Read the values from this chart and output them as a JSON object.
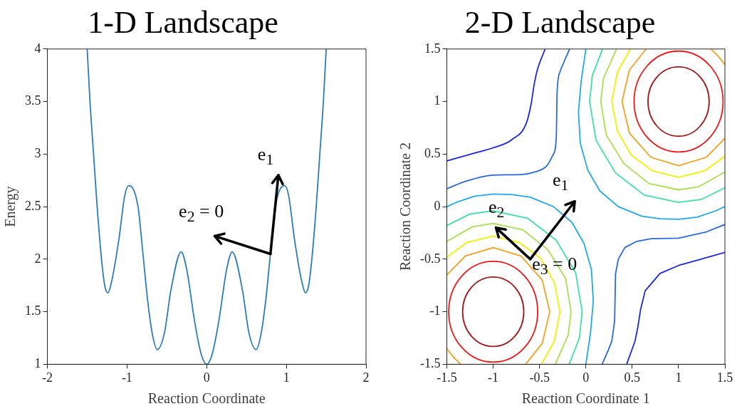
{
  "chart_data": [
    {
      "type": "line",
      "title": "1-D Landscape",
      "xlabel": "Reaction Coordinate",
      "ylabel": "Energy",
      "xlim": [
        -2,
        2
      ],
      "xticks": [
        -2,
        -1,
        0,
        1,
        2
      ],
      "ylim": [
        1,
        4
      ],
      "yticks": [
        1,
        1.5,
        2,
        2.5,
        3,
        3.5,
        4
      ],
      "grid": false,
      "legend": false,
      "marker": "none",
      "annotations": [
        {
          "text": "e$_{1}$",
          "x": 0.8,
          "y": 2.05
        },
        {
          "text": "e$_{2}$ = 0",
          "x": 0.8,
          "y": 2.05
        }
      ],
      "series": [
        {
          "color": "#2b7bbf",
          "x": [
            -1.5,
            -1.465,
            -1.42,
            -1.375,
            -1.32,
            -1.28,
            -1.24,
            -1.19,
            -1.1,
            -1.03,
            -0.98,
            -0.862,
            -0.8,
            -0.74,
            -0.68,
            -0.62,
            -0.53,
            -0.45,
            -0.32,
            -0.25,
            -0.15,
            -0.07,
            0,
            0.07,
            0.15,
            0.25,
            0.32,
            0.45,
            0.53,
            0.62,
            0.68,
            0.74,
            0.8,
            0.862,
            0.98,
            1.03,
            1.1,
            1.19,
            1.24,
            1.28,
            1.32,
            1.375,
            1.42,
            1.465,
            1.5
          ],
          "values": [
            4,
            3.5,
            3,
            2.5,
            2,
            1.75,
            1.68,
            1.8,
            2.2,
            2.6,
            2.7,
            2.5,
            2.05,
            1.6,
            1.28,
            1.14,
            1.3,
            1.7,
            2.07,
            1.9,
            1.4,
            1.1,
            1,
            1.1,
            1.4,
            1.9,
            2.07,
            1.7,
            1.3,
            1.14,
            1.28,
            1.6,
            2.05,
            2.5,
            2.7,
            2.6,
            2.2,
            1.8,
            1.68,
            1.75,
            2,
            2.5,
            3,
            3.5,
            4
          ]
        }
      ]
    },
    {
      "type": "line",
      "title": "2-D Landscape",
      "xlabel": "Reaction Coordinate 1",
      "ylabel": "Reaction Coordinate 2",
      "xlim": [
        -1.5,
        1.5
      ],
      "xticks": [
        -1.5,
        -1,
        -0.5,
        0,
        0.5,
        1,
        1.5
      ],
      "ylim": [
        -1.5,
        1.5
      ],
      "yticks": [
        -1.5,
        -1,
        -0.5,
        0,
        0.5,
        1,
        1.5
      ],
      "grid": false,
      "legend": false,
      "marker": "none",
      "annotations": [
        "e$_{1}$",
        "e$_{2}$",
        "e$_{3}$ = 0"
      ],
      "series": [
        {
          "color": "#f5a020",
          "x": [
            0.65,
            0.47,
            0.39,
            0.47,
            0.7,
            1,
            1.3,
            1.5
          ],
          "values": [
            1.5,
            1.3,
            1,
            0.7,
            0.47,
            0.39,
            0.47,
            0.65
          ]
        },
        {
          "color": "#f5a020",
          "x": [
            1.5,
            1.43,
            1.35
          ],
          "values": [
            1.35,
            1.43,
            1.5
          ]
        },
        {
          "color": "#f5a020",
          "x": [
            -0.65,
            -0.47,
            -0.39,
            -0.47,
            -0.7,
            -1,
            -1.3,
            -1.5
          ],
          "values": [
            -1.5,
            -1.3,
            -1,
            -0.7,
            -0.47,
            -0.39,
            -0.47,
            -0.65
          ]
        },
        {
          "color": "#f5a020",
          "x": [
            -1.5,
            -1.43,
            -1.35
          ],
          "values": [
            -1.35,
            -1.43,
            -1.5
          ]
        },
        {
          "color": "#f2f000",
          "x": [
            0.48,
            0.34,
            0.28,
            0.34,
            0.49,
            0.72,
            1,
            1.28,
            1.5
          ],
          "values": [
            1.5,
            1.28,
            1,
            0.72,
            0.49,
            0.34,
            0.28,
            0.34,
            0.48
          ]
        },
        {
          "color": "#f2f000",
          "x": [
            -0.48,
            -0.34,
            -0.28,
            -0.34,
            -0.49,
            -0.72,
            -1,
            -1.28,
            -1.5
          ],
          "values": [
            -1.5,
            -1.28,
            -1,
            -0.72,
            -0.49,
            -0.34,
            -0.28,
            -0.34,
            -0.48
          ]
        },
        {
          "color": "#a8e050",
          "x": [
            0.33,
            0.19,
            0.16,
            0.22,
            0.41,
            0.68,
            1,
            1.22,
            1.5
          ],
          "values": [
            1.5,
            1.22,
            1,
            0.68,
            0.41,
            0.22,
            0.16,
            0.19,
            0.33
          ]
        },
        {
          "color": "#a8e050",
          "x": [
            -0.33,
            -0.19,
            -0.16,
            -0.22,
            -0.41,
            -0.68,
            -1,
            -1.22,
            -1.5
          ],
          "values": [
            -1.5,
            -1.22,
            -1,
            -0.68,
            -0.41,
            -0.22,
            -0.16,
            -0.19,
            -0.33
          ]
        },
        {
          "color": "#40e0a0",
          "x": [
            0.18,
            0.07,
            0.04,
            0.11,
            0.32,
            0.63,
            1,
            1.25,
            1.5
          ],
          "values": [
            1.5,
            1.25,
            1,
            0.63,
            0.32,
            0.11,
            0.04,
            0.07,
            0.18
          ]
        },
        {
          "color": "#40e0a0",
          "x": [
            -0.18,
            -0.07,
            -0.04,
            -0.11,
            -0.32,
            -0.63,
            -1,
            -1.25,
            -1.5
          ],
          "values": [
            -1.5,
            -1.25,
            -1,
            -0.63,
            -0.32,
            -0.11,
            -0.04,
            -0.07,
            -0.18
          ]
        },
        {
          "color": "#20a8ee",
          "x": [
            0,
            -0.05,
            -0.08,
            -0.06,
            0.02,
            0.15,
            0.35,
            0.6,
            0.8,
            1,
            1.2,
            1.4,
            1.5
          ],
          "values": [
            1.5,
            1.2,
            0.9,
            0.6,
            0.35,
            0.15,
            0,
            -0.09,
            -0.115,
            -0.12,
            -0.1,
            -0.04,
            0
          ]
        },
        {
          "color": "#20a8ee",
          "x": [
            0,
            0.05,
            0.08,
            0.06,
            -0.02,
            -0.15,
            -0.35,
            -0.6,
            -0.8,
            -1,
            -1.2,
            -1.4,
            -1.5
          ],
          "values": [
            -1.5,
            -1.2,
            -0.9,
            -0.6,
            -0.35,
            -0.15,
            0,
            0.09,
            0.115,
            0.12,
            0.1,
            0.04,
            0
          ]
        },
        {
          "color": "#2a68e0",
          "x": [
            -1.5,
            -1.3,
            -1,
            -0.7,
            -0.55,
            -0.42,
            -0.35,
            -0.32,
            -0.31,
            -0.28,
            -0.24,
            -0.175
          ],
          "values": [
            0.17,
            0.24,
            0.3,
            0.305,
            0.33,
            0.39,
            0.5,
            0.64,
            1.09,
            1.28,
            1.37,
            1.5
          ]
        },
        {
          "color": "#2a68e0",
          "x": [
            1.5,
            1.3,
            1,
            0.7,
            0.55,
            0.42,
            0.35,
            0.32,
            0.31,
            0.28,
            0.24,
            0.175
          ],
          "values": [
            -0.17,
            -0.24,
            -0.3,
            -0.305,
            -0.33,
            -0.39,
            -0.5,
            -0.64,
            -1.09,
            -1.28,
            -1.37,
            -1.5
          ]
        },
        {
          "color": "#1c28e0",
          "x": [
            -1.5,
            -1.2,
            -1,
            -0.8,
            -0.64,
            -0.59,
            -0.56,
            -0.53,
            -0.44
          ],
          "values": [
            0.435,
            0.51,
            0.56,
            0.636,
            0.8,
            0.98,
            1.15,
            1.28,
            1.5
          ]
        },
        {
          "color": "#1c28e0",
          "x": [
            1.5,
            1.2,
            1,
            0.8,
            0.64,
            0.59,
            0.56,
            0.53,
            0.44
          ],
          "values": [
            -0.435,
            -0.51,
            -0.56,
            -0.636,
            -0.8,
            -0.98,
            -1.15,
            -1.28,
            -1.5
          ]
        }
      ]
    }
  ]
}
